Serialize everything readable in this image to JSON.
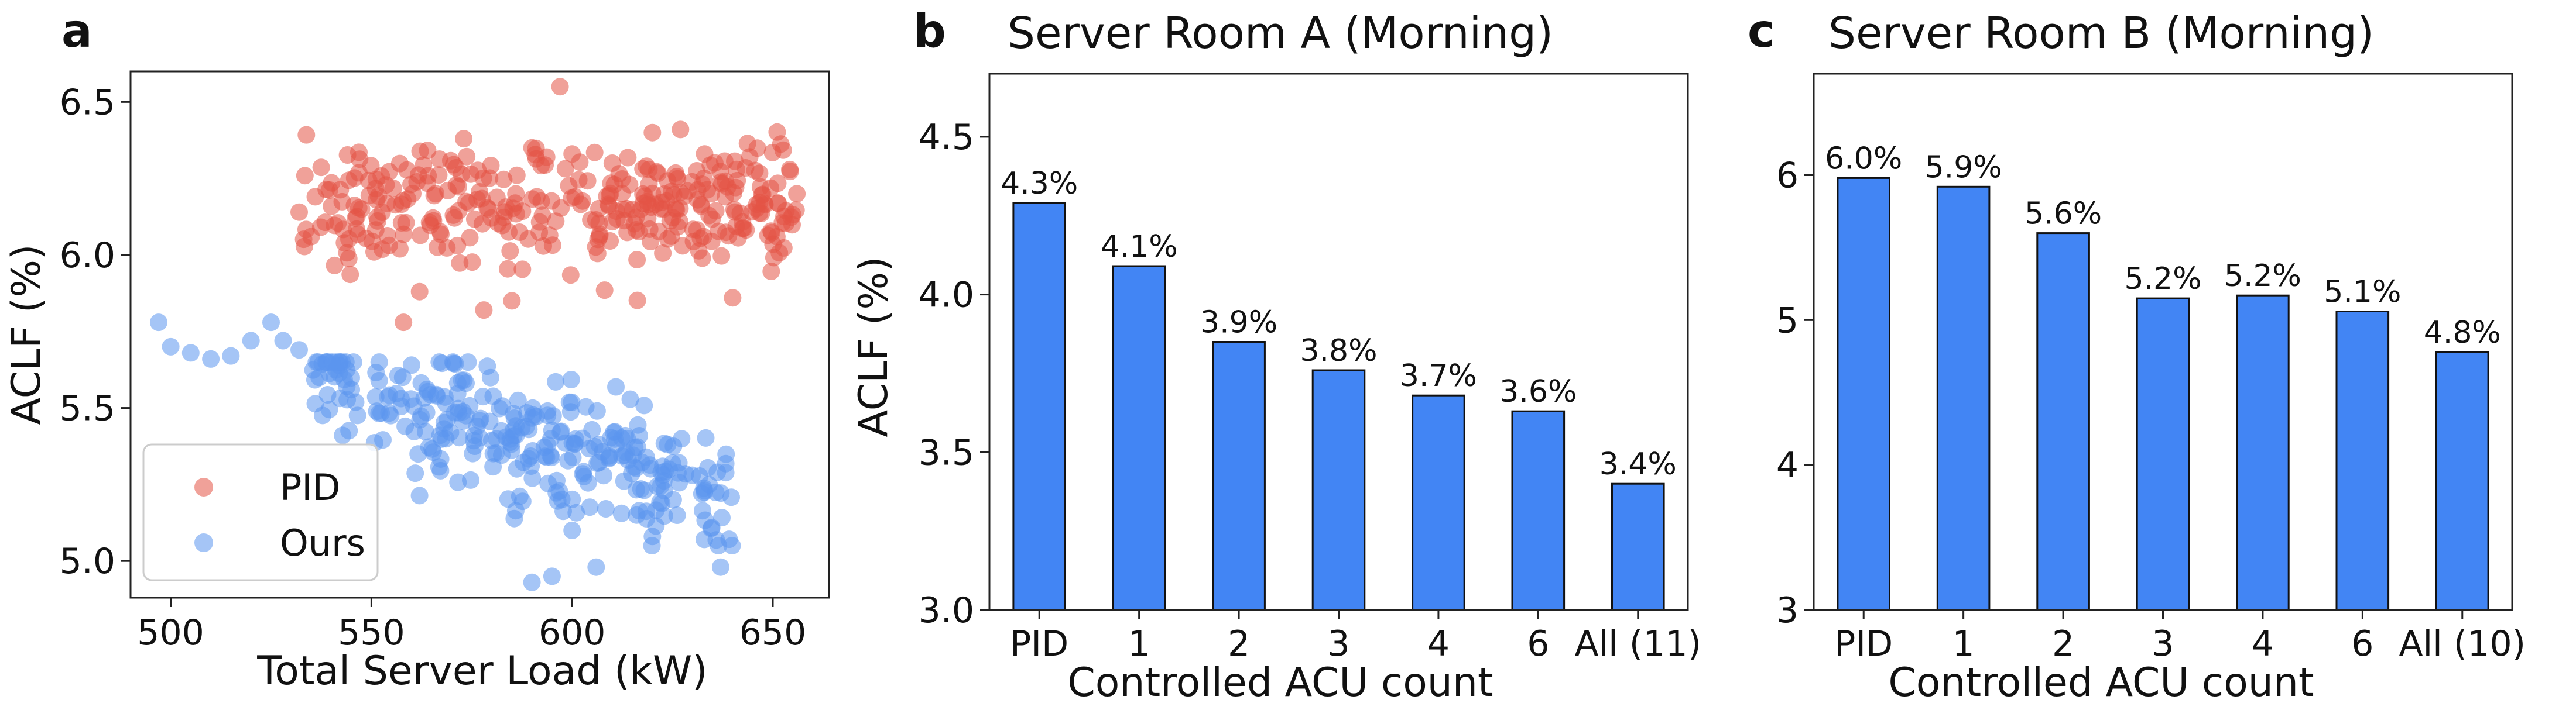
{
  "colors": {
    "pid": "#e45346",
    "ours": "#5b95ee",
    "bar": "#4285f4",
    "bar_edge": "#111111"
  },
  "chart_data": [
    {
      "panel": "a",
      "type": "scatter",
      "title": "",
      "xlabel": "Total Server Load (kW)",
      "ylabel": "ACLF (%)",
      "xlim": [
        490,
        664
      ],
      "ylim": [
        4.88,
        6.6
      ],
      "xticks": [
        "550",
        "600",
        "650"
      ],
      "yticks": [
        "5.0",
        "5.5",
        "6.0",
        "6.5"
      ],
      "legend": {
        "position": "lower-left",
        "entries": [
          "PID",
          "Ours"
        ]
      },
      "series": [
        {
          "name": "PID",
          "color": "#e45346",
          "opacity": 0.55,
          "x_range": [
            532,
            656
          ],
          "y_center": 6.15,
          "y_spread": 0.1,
          "points": [
            [
              532,
              6.14
            ],
            [
              535,
              6.06
            ],
            [
              558,
              5.78
            ],
            [
              578,
              5.82
            ],
            [
              597,
              6.55
            ],
            [
              573,
              6.38
            ],
            [
              620,
              6.4
            ],
            [
              640,
              5.86
            ],
            [
              562,
              5.88
            ],
            [
              585,
              5.85
            ],
            [
              600,
              6.33
            ],
            [
              627,
              6.41
            ],
            [
              651,
              6.06
            ],
            [
              546,
              6.12
            ],
            [
              590,
              6.35
            ],
            [
              610,
              6.3
            ],
            [
              633,
              6.33
            ],
            [
              656,
              6.2
            ]
          ],
          "n_scatter": 340
        },
        {
          "name": "Ours",
          "color": "#5b95ee",
          "opacity": 0.55,
          "x_range": [
            497,
            640
          ],
          "trend": [
            [
              497,
              5.78
            ],
            [
              640,
              5.18
            ]
          ],
          "y_spread": 0.1,
          "points": [
            [
              497,
              5.78
            ],
            [
              500,
              5.7
            ],
            [
              505,
              5.68
            ],
            [
              510,
              5.66
            ],
            [
              515,
              5.67
            ],
            [
              520,
              5.72
            ],
            [
              525,
              5.78
            ],
            [
              528,
              5.72
            ],
            [
              532,
              5.69
            ],
            [
              537,
              5.6
            ],
            [
              545,
              5.56
            ],
            [
              560,
              5.64
            ],
            [
              590,
              4.93
            ],
            [
              595,
              4.95
            ],
            [
              606,
              4.98
            ],
            [
              637,
              4.98
            ],
            [
              600,
              5.1
            ],
            [
              625,
              5.32
            ],
            [
              633,
              5.23
            ],
            [
              620,
              5.08
            ]
          ],
          "n_scatter": 300
        }
      ]
    },
    {
      "panel": "b",
      "type": "bar",
      "title": "Server Room A (Morning)",
      "xlabel": "Controlled ACU count",
      "ylabel": "ACLF (%)",
      "ylim": [
        3.0,
        4.7
      ],
      "yticks": [
        "3.0",
        "3.5",
        "4.0",
        "4.5"
      ],
      "categories": [
        "PID",
        "1",
        "2",
        "3",
        "4",
        "6",
        "All (11)"
      ],
      "values": [
        4.29,
        4.09,
        3.85,
        3.76,
        3.68,
        3.63,
        3.4
      ],
      "data_labels": [
        "4.3%",
        "4.1%",
        "3.9%",
        "3.8%",
        "3.7%",
        "3.6%",
        "3.4%"
      ]
    },
    {
      "panel": "c",
      "type": "bar",
      "title": "Server Room B (Morning)",
      "xlabel": "Controlled ACU count",
      "ylabel": "",
      "ylim": [
        3.0,
        6.7
      ],
      "yticks": [
        "3",
        "4",
        "5",
        "6"
      ],
      "categories": [
        "PID",
        "1",
        "2",
        "3",
        "4",
        "6",
        "All (10)"
      ],
      "values": [
        5.98,
        5.92,
        5.6,
        5.15,
        5.17,
        5.06,
        4.78
      ],
      "data_labels": [
        "6.0%",
        "5.9%",
        "5.6%",
        "5.2%",
        "5.2%",
        "5.1%",
        "4.8%"
      ]
    }
  ],
  "panels": {
    "a": {
      "letter": "a"
    },
    "b": {
      "letter": "b"
    },
    "c": {
      "letter": "c"
    }
  }
}
